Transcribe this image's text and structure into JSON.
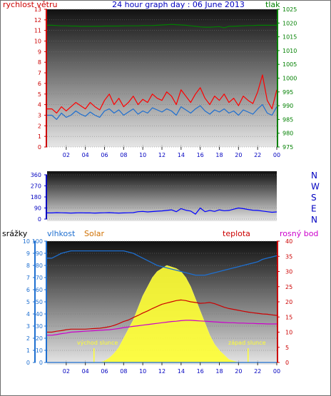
{
  "header": {
    "title": "24 hour graph day : 06 June 2013",
    "left_label": "rychlost větru",
    "right_label": "tlak"
  },
  "wind_panel": {
    "left_ticks": [
      "0",
      "1",
      "2",
      "3",
      "4",
      "5",
      "6",
      "7",
      "8",
      "9",
      "10",
      "11",
      "12",
      "13"
    ],
    "right_ticks": [
      "975",
      "980",
      "985",
      "990",
      "995",
      "1000",
      "1005",
      "1010",
      "1015",
      "1020",
      "1025"
    ],
    "x_ticks": [
      "02",
      "04",
      "06",
      "08",
      "10",
      "12",
      "14",
      "16",
      "18",
      "20",
      "22",
      "00"
    ]
  },
  "direction_panel": {
    "left_ticks": [
      "0",
      "90",
      "180",
      "270",
      "360"
    ],
    "compass": [
      "N",
      "W",
      "S",
      "E",
      "N"
    ]
  },
  "weather_panel": {
    "labels": {
      "rain": "srážky",
      "humidity": "vlhkost",
      "solar": "Solar",
      "temperature": "teplota",
      "dewpoint": "rosný bod"
    },
    "rain_ticks": [
      "0",
      "1",
      "2",
      "3",
      "4",
      "5",
      "6",
      "7",
      "8",
      "9",
      "10"
    ],
    "humidity_ticks": [
      "0",
      "10",
      "20",
      "30",
      "40",
      "50",
      "60",
      "70",
      "80",
      "90",
      "100"
    ],
    "right_ticks": [
      "0",
      "5",
      "10",
      "15",
      "20",
      "25",
      "30",
      "35",
      "40"
    ],
    "x_ticks": [
      "02",
      "04",
      "06",
      "08",
      "10",
      "12",
      "14",
      "16",
      "18",
      "20",
      "22",
      "00"
    ],
    "sunrise_label": "východ slunce",
    "sunset_label": "západ slunce"
  },
  "colors": {
    "wind_gust": "#ff0000",
    "wind_avg": "#1e6fd0",
    "pressure": "#008000",
    "direction": "#0000ff",
    "humidity": "#1e6fd0",
    "solar": "#ffff33",
    "temperature": "#cc0000",
    "dewpoint": "#cc00cc",
    "title": "#0000c0"
  },
  "chart_data": [
    {
      "type": "line",
      "title": "24 hour graph day : 06 June 2013",
      "x_hours": [
        0.5,
        1,
        1.5,
        2,
        2.5,
        3,
        3.5,
        4,
        4.5,
        5,
        5.5,
        6,
        6.5,
        7,
        7.5,
        8,
        8.5,
        9,
        9.5,
        10,
        10.5,
        11,
        11.5,
        12,
        12.5,
        13,
        13.5,
        14,
        14.5,
        15,
        15.5,
        16,
        16.5,
        17,
        17.5,
        18,
        18.5,
        19,
        19.5,
        20,
        20.5,
        21,
        21.5,
        22,
        22.5,
        23,
        23.5,
        24
      ],
      "series": [
        {
          "name": "rychlost větru",
          "axis": "left",
          "ylim": [
            0,
            13
          ],
          "values": [
            3.0,
            2.6,
            3.2,
            2.8,
            3.0,
            3.4,
            3.1,
            2.9,
            3.3,
            3.0,
            2.8,
            3.4,
            3.6,
            3.2,
            3.5,
            3.0,
            3.3,
            3.6,
            3.1,
            3.4,
            3.2,
            3.7,
            3.5,
            3.3,
            3.6,
            3.4,
            3.0,
            3.8,
            3.5,
            3.2,
            3.6,
            3.9,
            3.4,
            3.1,
            3.5,
            3.3,
            3.6,
            3.2,
            3.4,
            3.0,
            3.5,
            3.3,
            3.1,
            3.6,
            4.0,
            3.2,
            3.0,
            3.8
          ]
        },
        {
          "name": "gust",
          "axis": "left",
          "ylim": [
            0,
            13
          ],
          "values": [
            3.6,
            3.2,
            3.8,
            3.4,
            3.8,
            4.2,
            3.9,
            3.6,
            4.2,
            3.8,
            3.5,
            4.4,
            5.0,
            4.0,
            4.6,
            3.8,
            4.2,
            4.8,
            4.0,
            4.5,
            4.2,
            5.0,
            4.6,
            4.4,
            5.2,
            4.8,
            4.0,
            5.4,
            4.8,
            4.2,
            5.0,
            5.6,
            4.6,
            4.0,
            4.8,
            4.4,
            5.0,
            4.2,
            4.6,
            3.9,
            4.8,
            4.4,
            4.1,
            5.2,
            6.8,
            4.4,
            3.6,
            5.4
          ]
        },
        {
          "name": "tlak",
          "axis": "right",
          "ylim": [
            975,
            1025
          ],
          "values": [
            1019.2,
            1019.1,
            1019.0,
            1019.0,
            1018.9,
            1018.9,
            1018.8,
            1018.8,
            1018.8,
            1018.8,
            1018.8,
            1018.9,
            1018.9,
            1018.9,
            1018.9,
            1019.0,
            1019.0,
            1019.0,
            1019.0,
            1019.1,
            1019.1,
            1019.1,
            1019.2,
            1019.3,
            1019.4,
            1019.5,
            1019.4,
            1019.3,
            1019.2,
            1019.0,
            1018.8,
            1018.6,
            1018.5,
            1018.5,
            1018.6,
            1018.7,
            1018.3,
            1018.8,
            1018.8,
            1018.9,
            1019.0,
            1019.1,
            1019.1,
            1019.2,
            1019.2,
            1019.2,
            1019.2,
            1019.2
          ]
        }
      ]
    },
    {
      "type": "line",
      "x_hours": [
        0.5,
        1,
        1.5,
        2,
        2.5,
        3,
        3.5,
        4,
        4.5,
        5,
        5.5,
        6,
        6.5,
        7,
        7.5,
        8,
        8.5,
        9,
        9.5,
        10,
        10.5,
        11,
        11.5,
        12,
        12.5,
        13,
        13.5,
        14,
        14.5,
        15,
        15.5,
        16,
        16.5,
        17,
        17.5,
        18,
        18.5,
        19,
        19.5,
        20,
        20.5,
        21,
        21.5,
        22,
        22.5,
        23,
        23.5,
        24
      ],
      "series": [
        {
          "name": "direction",
          "ylim": [
            0,
            360
          ],
          "values": [
            50,
            52,
            51,
            50,
            49,
            50,
            51,
            50,
            50,
            49,
            50,
            51,
            52,
            50,
            49,
            50,
            51,
            52,
            60,
            62,
            58,
            61,
            64,
            66,
            70,
            75,
            60,
            85,
            72,
            65,
            40,
            90,
            60,
            70,
            62,
            75,
            68,
            70,
            80,
            90,
            85,
            78,
            72,
            70,
            65,
            60,
            55,
            58
          ]
        }
      ]
    },
    {
      "type": "area",
      "x_hours": [
        0.5,
        1,
        1.5,
        2,
        2.5,
        3,
        3.5,
        4,
        4.5,
        5,
        5.5,
        6,
        6.5,
        7,
        7.5,
        8,
        8.5,
        9,
        9.5,
        10,
        10.5,
        11,
        11.5,
        12,
        12.5,
        13,
        13.5,
        14,
        14.5,
        15,
        15.5,
        16,
        16.5,
        17,
        17.5,
        18,
        18.5,
        19,
        19.5,
        20,
        20.5,
        21,
        21.5,
        22,
        22.5,
        23,
        23.5,
        24
      ],
      "series": [
        {
          "name": "Solar",
          "axis": "right",
          "ylim": [
            0,
            40
          ],
          "values": [
            0,
            0,
            0,
            0,
            0,
            0,
            0,
            0,
            0,
            0,
            0,
            0.5,
            1.5,
            3,
            5,
            8,
            11,
            14,
            18,
            22,
            25,
            28,
            30,
            31,
            32,
            31.5,
            31,
            30,
            28,
            25,
            21,
            17,
            13,
            9,
            6,
            4,
            2.5,
            1,
            0.5,
            0,
            0,
            0,
            0,
            0,
            0,
            0,
            0,
            0
          ]
        },
        {
          "name": "vlhkost",
          "axis": "left",
          "ylim": [
            0,
            100
          ],
          "values": [
            86,
            88,
            90,
            91,
            92,
            92,
            92,
            92,
            92,
            92,
            92,
            92,
            92,
            92,
            92,
            92,
            91,
            90,
            88,
            86,
            84,
            82,
            80,
            79,
            78,
            77,
            76,
            75,
            74,
            73,
            72,
            72,
            72,
            73,
            74,
            75,
            76,
            77,
            78,
            79,
            80,
            81,
            82,
            83,
            85,
            86,
            87,
            88
          ]
        },
        {
          "name": "teplota",
          "axis": "right",
          "ylim": [
            0,
            40
          ],
          "values": [
            10.0,
            10.3,
            10.5,
            10.8,
            11.0,
            11.0,
            11.0,
            11.0,
            11.1,
            11.2,
            11.3,
            11.5,
            11.8,
            12.2,
            12.8,
            13.5,
            14.0,
            14.8,
            15.5,
            16.3,
            17.0,
            17.8,
            18.5,
            19.2,
            19.6,
            20.0,
            20.4,
            20.6,
            20.4,
            20.0,
            19.8,
            19.5,
            19.6,
            19.8,
            19.4,
            18.8,
            18.2,
            17.8,
            17.5,
            17.2,
            16.9,
            16.6,
            16.4,
            16.2,
            16.0,
            15.9,
            15.7,
            15.5
          ]
        },
        {
          "name": "rosný bod",
          "axis": "right",
          "ylim": [
            0,
            40
          ],
          "values": [
            9.0,
            9.2,
            9.5,
            9.7,
            10.0,
            10.1,
            10.2,
            10.3,
            10.4,
            10.5,
            10.6,
            10.7,
            10.8,
            11.0,
            11.2,
            11.5,
            11.7,
            11.9,
            12.1,
            12.3,
            12.5,
            12.7,
            12.9,
            13.1,
            13.3,
            13.5,
            13.6,
            13.8,
            13.9,
            13.9,
            13.8,
            13.7,
            13.6,
            13.5,
            13.4,
            13.3,
            13.2,
            13.1,
            13.1,
            13.0,
            13.0,
            12.9,
            12.9,
            12.8,
            12.8,
            12.7,
            12.7,
            12.7
          ]
        },
        {
          "name": "srážky",
          "axis": "rain",
          "ylim": [
            0,
            10
          ],
          "values": [
            0,
            0,
            0,
            0,
            0,
            0,
            0,
            0,
            0,
            0,
            0,
            0,
            0,
            0,
            0,
            0,
            0,
            0,
            0,
            0,
            0,
            0,
            0,
            0,
            0,
            0,
            0,
            0,
            0,
            0,
            0,
            0,
            0,
            0,
            0,
            0,
            0,
            0,
            0,
            0,
            0,
            0,
            0,
            0,
            0,
            0,
            0,
            0
          ]
        }
      ]
    }
  ]
}
